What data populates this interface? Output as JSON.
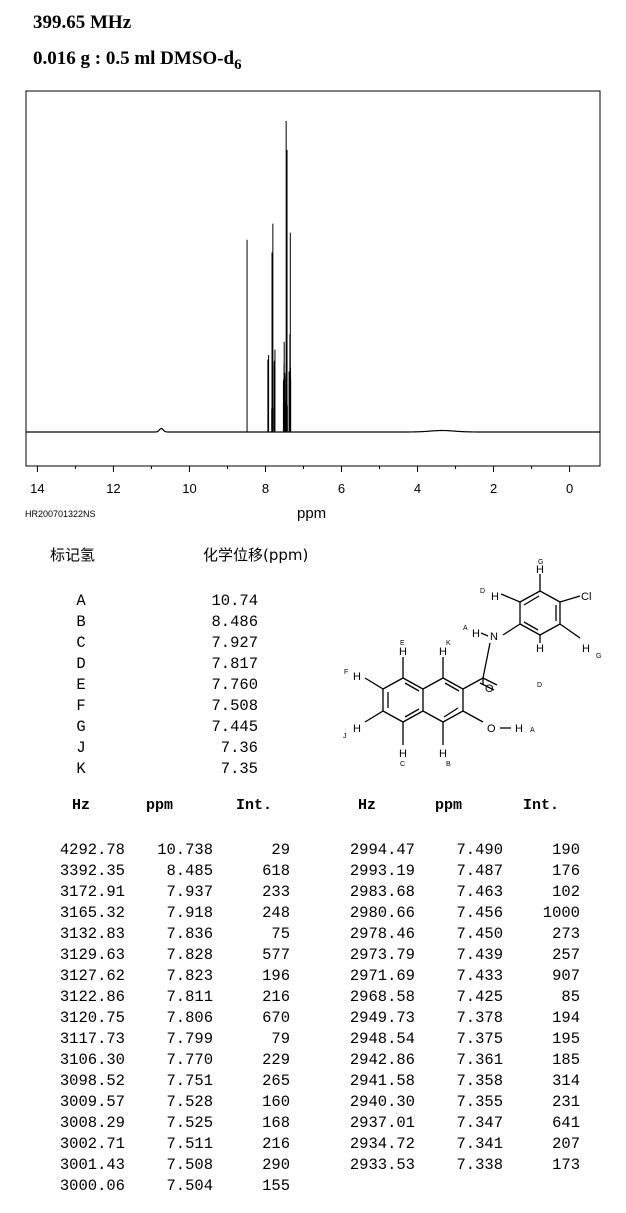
{
  "header": {
    "frequency": "399.65 MHz",
    "sample": "0.016 g : 0.5 ml DMSO-d",
    "sample_sub": "6"
  },
  "sample_id": "HR200701322NS",
  "chart_data": {
    "type": "line",
    "xlabel": "ppm",
    "xlim": [
      14.3,
      -0.8
    ],
    "x_ticks": [
      14,
      12,
      10,
      8,
      6,
      4,
      2,
      0
    ],
    "grid": false,
    "max_intensity": 1000,
    "peaks": [
      {
        "ppm": 10.738,
        "int": 29
      },
      {
        "ppm": 8.485,
        "int": 618
      },
      {
        "ppm": 7.937,
        "int": 233
      },
      {
        "ppm": 7.918,
        "int": 248
      },
      {
        "ppm": 7.836,
        "int": 75
      },
      {
        "ppm": 7.828,
        "int": 577
      },
      {
        "ppm": 7.823,
        "int": 196
      },
      {
        "ppm": 7.811,
        "int": 216
      },
      {
        "ppm": 7.806,
        "int": 670
      },
      {
        "ppm": 7.799,
        "int": 79
      },
      {
        "ppm": 7.77,
        "int": 229
      },
      {
        "ppm": 7.751,
        "int": 265
      },
      {
        "ppm": 7.528,
        "int": 160
      },
      {
        "ppm": 7.525,
        "int": 168
      },
      {
        "ppm": 7.511,
        "int": 216
      },
      {
        "ppm": 7.508,
        "int": 290
      },
      {
        "ppm": 7.504,
        "int": 155
      },
      {
        "ppm": 7.49,
        "int": 190
      },
      {
        "ppm": 7.487,
        "int": 176
      },
      {
        "ppm": 7.463,
        "int": 102
      },
      {
        "ppm": 7.456,
        "int": 1000
      },
      {
        "ppm": 7.45,
        "int": 273
      },
      {
        "ppm": 7.439,
        "int": 257
      },
      {
        "ppm": 7.433,
        "int": 907
      },
      {
        "ppm": 7.425,
        "int": 85
      },
      {
        "ppm": 7.378,
        "int": 194
      },
      {
        "ppm": 7.375,
        "int": 195
      },
      {
        "ppm": 7.361,
        "int": 185
      },
      {
        "ppm": 7.358,
        "int": 314
      },
      {
        "ppm": 7.355,
        "int": 231
      },
      {
        "ppm": 7.347,
        "int": 641
      },
      {
        "ppm": 7.341,
        "int": 207
      },
      {
        "ppm": 7.338,
        "int": 173
      }
    ],
    "broad_humps": [
      {
        "ppm": 10.74,
        "int": 29
      },
      {
        "ppm": 3.35,
        "int": 12
      }
    ]
  },
  "assignment": {
    "col_label": "标记氢",
    "col_shift": "化学位移(ppm)",
    "rows": [
      {
        "label": "A",
        "shift": "10.74"
      },
      {
        "label": "B",
        "shift": "8.486"
      },
      {
        "label": "C",
        "shift": "7.927"
      },
      {
        "label": "D",
        "shift": "7.817"
      },
      {
        "label": "E",
        "shift": "7.760"
      },
      {
        "label": "F",
        "shift": "7.508"
      },
      {
        "label": "G",
        "shift": "7.445"
      },
      {
        "label": "J",
        "shift": "7.36"
      },
      {
        "label": "K",
        "shift": "7.35"
      }
    ]
  },
  "structure": {
    "atoms": {
      "cl": "Cl",
      "n": "N",
      "o_carbonyl": "O",
      "o_hydroxyl": "O",
      "h": "H"
    },
    "labels": {
      "a": "A",
      "b": "B",
      "c": "C",
      "d": "D",
      "e": "E",
      "f": "F",
      "g": "G",
      "j": "J",
      "k": "K"
    }
  },
  "peak_table": {
    "headers": {
      "hz": "Hz",
      "ppm": "ppm",
      "int": "Int."
    },
    "left": [
      {
        "hz": "4292.78",
        "ppm": "10.738",
        "int": "29"
      },
      {
        "hz": "3392.35",
        "ppm": "8.485",
        "int": "618"
      },
      {
        "hz": "3172.91",
        "ppm": "7.937",
        "int": "233"
      },
      {
        "hz": "3165.32",
        "ppm": "7.918",
        "int": "248"
      },
      {
        "hz": "3132.83",
        "ppm": "7.836",
        "int": "75"
      },
      {
        "hz": "3129.63",
        "ppm": "7.828",
        "int": "577"
      },
      {
        "hz": "3127.62",
        "ppm": "7.823",
        "int": "196"
      },
      {
        "hz": "3122.86",
        "ppm": "7.811",
        "int": "216"
      },
      {
        "hz": "3120.75",
        "ppm": "7.806",
        "int": "670"
      },
      {
        "hz": "3117.73",
        "ppm": "7.799",
        "int": "79"
      },
      {
        "hz": "3106.30",
        "ppm": "7.770",
        "int": "229"
      },
      {
        "hz": "3098.52",
        "ppm": "7.751",
        "int": "265"
      },
      {
        "hz": "3009.57",
        "ppm": "7.528",
        "int": "160"
      },
      {
        "hz": "3008.29",
        "ppm": "7.525",
        "int": "168"
      },
      {
        "hz": "3002.71",
        "ppm": "7.511",
        "int": "216"
      },
      {
        "hz": "3001.43",
        "ppm": "7.508",
        "int": "290"
      },
      {
        "hz": "3000.06",
        "ppm": "7.504",
        "int": "155"
      }
    ],
    "right": [
      {
        "hz": "2994.47",
        "ppm": "7.490",
        "int": "190"
      },
      {
        "hz": "2993.19",
        "ppm": "7.487",
        "int": "176"
      },
      {
        "hz": "2983.68",
        "ppm": "7.463",
        "int": "102"
      },
      {
        "hz": "2980.66",
        "ppm": "7.456",
        "int": "1000"
      },
      {
        "hz": "2978.46",
        "ppm": "7.450",
        "int": "273"
      },
      {
        "hz": "2973.79",
        "ppm": "7.439",
        "int": "257"
      },
      {
        "hz": "2971.69",
        "ppm": "7.433",
        "int": "907"
      },
      {
        "hz": "2968.58",
        "ppm": "7.425",
        "int": "85"
      },
      {
        "hz": "2949.73",
        "ppm": "7.378",
        "int": "194"
      },
      {
        "hz": "2948.54",
        "ppm": "7.375",
        "int": "195"
      },
      {
        "hz": "2942.86",
        "ppm": "7.361",
        "int": "185"
      },
      {
        "hz": "2941.58",
        "ppm": "7.358",
        "int": "314"
      },
      {
        "hz": "2940.30",
        "ppm": "7.355",
        "int": "231"
      },
      {
        "hz": "2937.01",
        "ppm": "7.347",
        "int": "641"
      },
      {
        "hz": "2934.72",
        "ppm": "7.341",
        "int": "207"
      },
      {
        "hz": "2933.53",
        "ppm": "7.338",
        "int": "173"
      }
    ]
  }
}
